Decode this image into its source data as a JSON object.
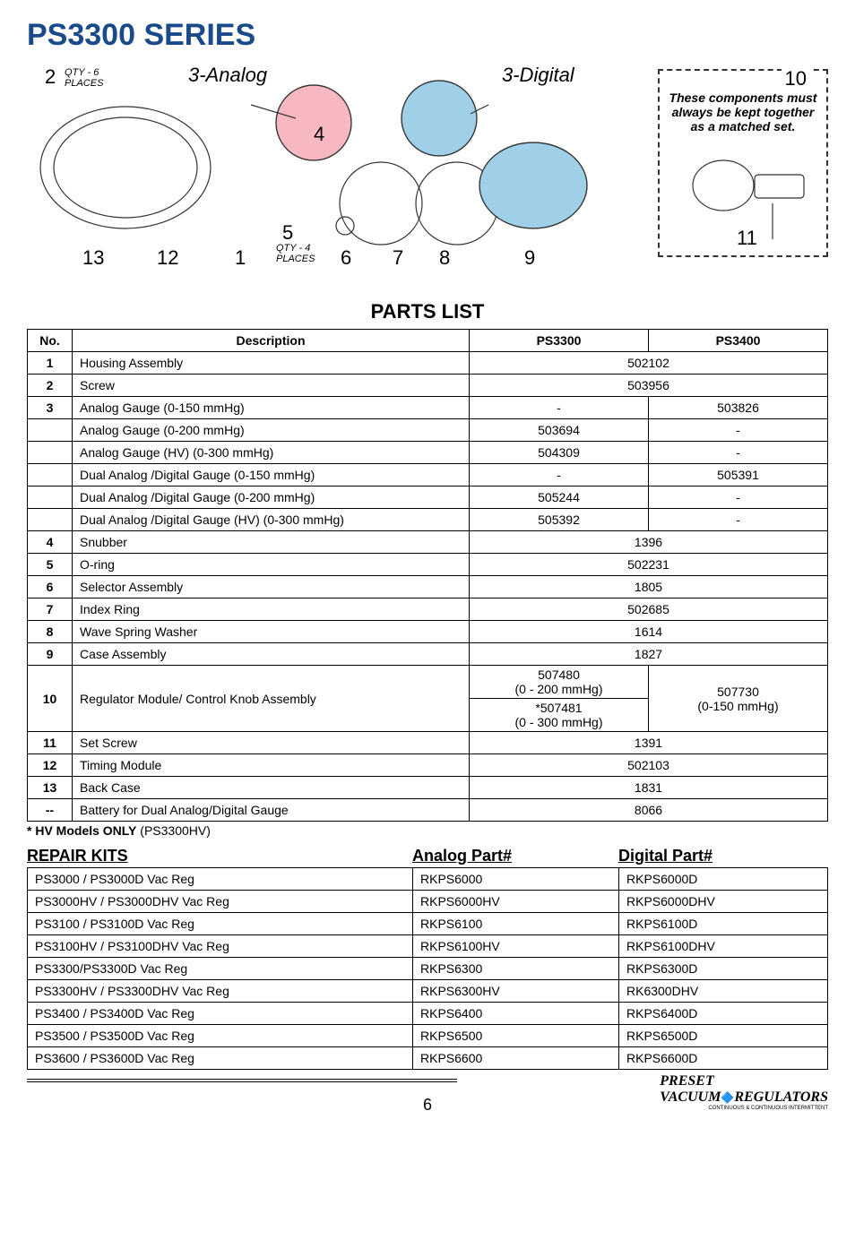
{
  "title": "PS3300 SERIES",
  "diagram": {
    "callouts": {
      "c2": "2",
      "c2_qty": "QTY - 6\nPLACES",
      "c3_analog": "3-Analog",
      "c3_digital": "3-Digital",
      "c4": "4",
      "c5": "5",
      "c5_qty": "QTY - 4\nPLACES",
      "c6": "6",
      "c7": "7",
      "c8": "8",
      "c9": "9",
      "c10": "10",
      "c11": "11",
      "c12": "12",
      "c13": "13",
      "c1": "1"
    },
    "matched_set_text": "These components must always be kept together as a matched set."
  },
  "parts_list_title": "PARTS LIST",
  "parts_header": {
    "no": "No.",
    "desc": "Description",
    "col1": "PS3300",
    "col2": "PS3400"
  },
  "parts": [
    {
      "no": "1",
      "desc": "Housing Assembly",
      "span": "502102"
    },
    {
      "no": "2",
      "desc": "Screw",
      "span": "503956"
    },
    {
      "no": "3",
      "desc": "Analog Gauge (0-150 mmHg)",
      "c1": "-",
      "c2": "503826"
    },
    {
      "no": "",
      "desc": "Analog Gauge (0-200 mmHg)",
      "c1": "503694",
      "c2": "-"
    },
    {
      "no": "",
      "desc": "Analog Gauge (HV) (0-300 mmHg)",
      "c1": "504309",
      "c2": "-"
    },
    {
      "no": "",
      "desc": "Dual Analog /Digital Gauge (0-150 mmHg)",
      "c1": "-",
      "c2": "505391"
    },
    {
      "no": "",
      "desc": "Dual Analog /Digital Gauge (0-200 mmHg)",
      "c1": "505244",
      "c2": "-"
    },
    {
      "no": "",
      "desc": "Dual Analog /Digital Gauge (HV) (0-300 mmHg)",
      "c1": "505392",
      "c2": "-"
    },
    {
      "no": "4",
      "desc": "Snubber",
      "span": "1396"
    },
    {
      "no": "5",
      "desc": "O-ring",
      "span": "502231"
    },
    {
      "no": "6",
      "desc": "Selector Assembly",
      "span": "1805"
    },
    {
      "no": "7",
      "desc": "Index Ring",
      "span": "502685"
    },
    {
      "no": "8",
      "desc": "Wave Spring Washer",
      "span": "1614"
    },
    {
      "no": "9",
      "desc": "Case Assembly",
      "span": "1827"
    },
    {
      "no": "10",
      "desc": "Regulator Module/ Control Knob Assembly",
      "stacked1": [
        "507480",
        "(0 - 200 mmHg)",
        "*507481",
        "(0 - 300 mmHg)"
      ],
      "c2multi": "507730\n(0-150 mmHg)"
    },
    {
      "no": "11",
      "desc": "Set Screw",
      "span": "1391"
    },
    {
      "no": "12",
      "desc": "Timing Module",
      "span": "502103"
    },
    {
      "no": "13",
      "desc": "Back Case",
      "span": "1831"
    },
    {
      "no": "--",
      "desc": "Battery for Dual Analog/Digital Gauge",
      "span": "8066"
    }
  ],
  "hv_note_bold": "* HV Models ONLY",
  "hv_note_rest": " (PS3300HV)",
  "repair_title": "REPAIR KITS",
  "repair_col_analog": "Analog Part#",
  "repair_col_digital": "Digital Part#",
  "repair": [
    {
      "desc": "PS3000 / PS3000D Vac Reg",
      "a": "RKPS6000",
      "d": "RKPS6000D"
    },
    {
      "desc": "PS3000HV / PS3000DHV Vac Reg",
      "a": "RKPS6000HV",
      "d": "RKPS6000DHV"
    },
    {
      "desc": "PS3100 / PS3100D Vac Reg",
      "a": "RKPS6100",
      "d": "RKPS6100D"
    },
    {
      "desc": "PS3100HV / PS3100DHV Vac Reg",
      "a": "RKPS6100HV",
      "d": "RKPS6100DHV"
    },
    {
      "desc": "PS3300/PS3300D Vac Reg",
      "a": "RKPS6300",
      "d": "RKPS6300D"
    },
    {
      "desc": "PS3300HV / PS3300DHV Vac Reg",
      "a": "RKPS6300HV",
      "d": "RK6300DHV"
    },
    {
      "desc": "PS3400 / PS3400D Vac Reg",
      "a": "RKPS6400",
      "d": "RKPS6400D"
    },
    {
      "desc": "PS3500 / PS3500D Vac Reg",
      "a": "RKPS6500",
      "d": "RKPS6500D"
    },
    {
      "desc": "PS3600 / PS3600D Vac Reg",
      "a": "RKPS6600",
      "d": "RKPS6600D"
    }
  ],
  "page_num": "6",
  "brand_preset": "PRESET",
  "brand_vacuum": "VACUUM",
  "brand_reg": "REGULATORS",
  "brand_small": "CONTINUOUS & CONTINUOUS INTERMITTENT"
}
